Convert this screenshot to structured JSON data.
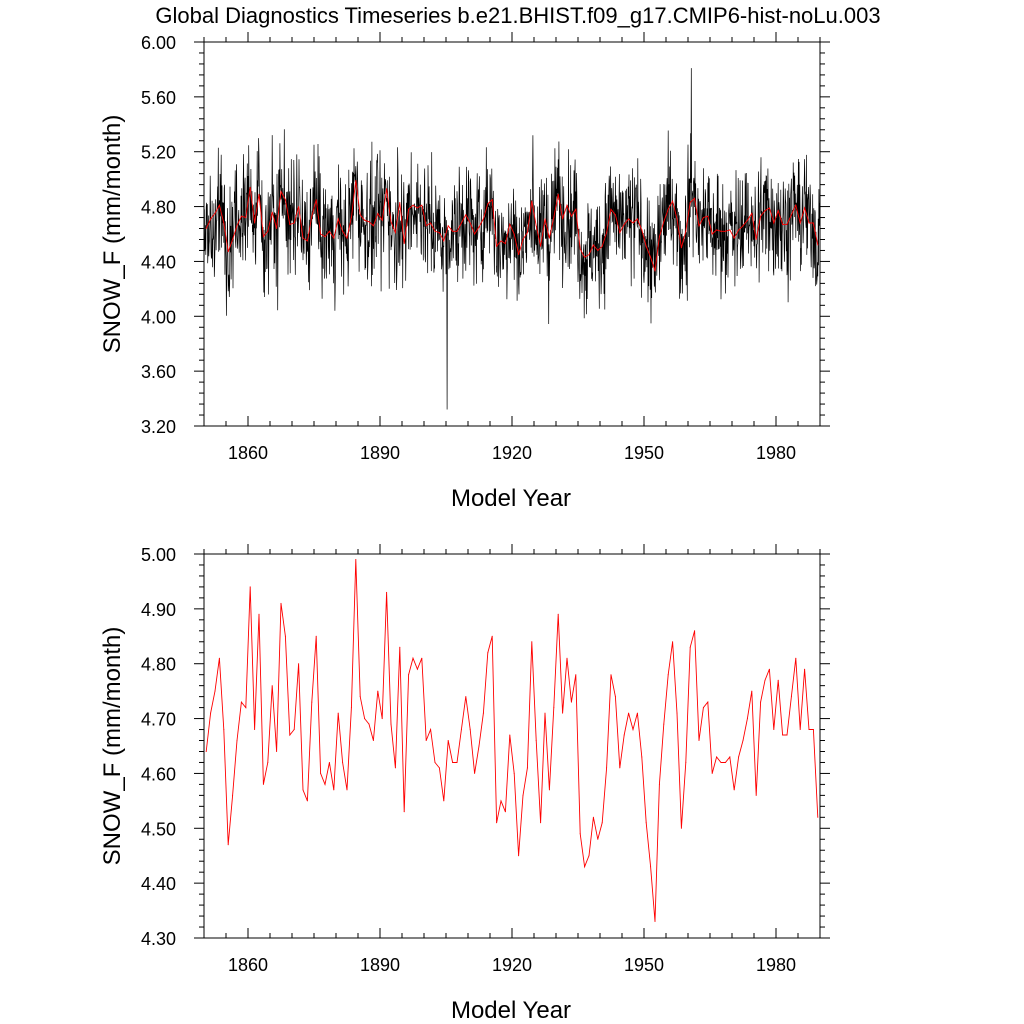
{
  "title": "Global Diagnostics Timeseries b.e21.BHIST.f09_g17.CMIP6-hist-noLu.003",
  "colors": {
    "monthly": "#000000",
    "annual": "#ff0000",
    "frame": "#000000"
  },
  "chart_data": [
    {
      "type": "line",
      "xlabel": "Model Year",
      "ylabel": "SNOW_F (mm/month)",
      "xlim": [
        1850,
        1990
      ],
      "ylim": [
        3.2,
        6.0
      ],
      "xticks": [
        1860,
        1890,
        1920,
        1950,
        1980
      ],
      "yticks": [
        "3.20",
        "3.60",
        "4.00",
        "4.40",
        "4.80",
        "5.20",
        "5.60",
        "6.00"
      ],
      "grid": false,
      "series": [
        {
          "kind": "monthly",
          "color": "#000000",
          "x_start": 1850,
          "x_end": 1990,
          "summary": {
            "mean_approx": 4.7,
            "min": 3.32,
            "min_year": 1905,
            "max": 5.81,
            "max_year": 1960
          }
        },
        {
          "kind": "annual",
          "color": "#ff0000",
          "x": [
            1850,
            1851,
            1852,
            1853,
            1854,
            1855,
            1856,
            1857,
            1858,
            1859,
            1860,
            1861,
            1862,
            1863,
            1864,
            1865,
            1866,
            1867,
            1868,
            1869,
            1870,
            1871,
            1872,
            1873,
            1874,
            1875,
            1876,
            1877,
            1878,
            1879,
            1880,
            1881,
            1882,
            1883,
            1884,
            1885,
            1886,
            1887,
            1888,
            1889,
            1890,
            1891,
            1892,
            1893,
            1894,
            1895,
            1896,
            1897,
            1898,
            1899,
            1900,
            1901,
            1902,
            1903,
            1904,
            1905,
            1906,
            1907,
            1908,
            1909,
            1910,
            1911,
            1912,
            1913,
            1914,
            1915,
            1916,
            1917,
            1918,
            1919,
            1920,
            1921,
            1922,
            1923,
            1924,
            1925,
            1926,
            1927,
            1928,
            1929,
            1930,
            1931,
            1932,
            1933,
            1934,
            1935,
            1936,
            1937,
            1938,
            1939,
            1940,
            1941,
            1942,
            1943,
            1944,
            1945,
            1946,
            1947,
            1948,
            1949,
            1950,
            1951,
            1952,
            1953,
            1954,
            1955,
            1956,
            1957,
            1958,
            1959,
            1960,
            1961,
            1962,
            1963,
            1964,
            1965,
            1966,
            1967,
            1968,
            1969,
            1970,
            1971,
            1972,
            1973,
            1974,
            1975,
            1976,
            1977,
            1978,
            1979,
            1980,
            1981,
            1982,
            1983,
            1984,
            1985,
            1986,
            1987,
            1988,
            1989
          ],
          "values": [
            4.64,
            4.71,
            4.75,
            4.81,
            4.68,
            4.47,
            4.56,
            4.66,
            4.73,
            4.72,
            4.94,
            4.68,
            4.89,
            4.58,
            4.62,
            4.76,
            4.64,
            4.91,
            4.85,
            4.67,
            4.68,
            4.8,
            4.57,
            4.55,
            4.73,
            4.85,
            4.6,
            4.58,
            4.62,
            4.57,
            4.71,
            4.62,
            4.57,
            4.72,
            4.99,
            4.74,
            4.7,
            4.69,
            4.66,
            4.75,
            4.7,
            4.93,
            4.69,
            4.61,
            4.83,
            4.53,
            4.78,
            4.81,
            4.79,
            4.81,
            4.66,
            4.68,
            4.62,
            4.61,
            4.55,
            4.66,
            4.62,
            4.62,
            4.68,
            4.74,
            4.68,
            4.6,
            4.65,
            4.71,
            4.82,
            4.85,
            4.51,
            4.55,
            4.53,
            4.67,
            4.6,
            4.45,
            4.56,
            4.61,
            4.84,
            4.66,
            4.51,
            4.71,
            4.57,
            4.72,
            4.89,
            4.71,
            4.81,
            4.73,
            4.78,
            4.49,
            4.43,
            4.45,
            4.52,
            4.48,
            4.51,
            4.61,
            4.78,
            4.74,
            4.61,
            4.67,
            4.71,
            4.68,
            4.71,
            4.63,
            4.51,
            4.43,
            4.33,
            4.58,
            4.69,
            4.78,
            4.84,
            4.71,
            4.5,
            4.62,
            4.83,
            4.86,
            4.66,
            4.72,
            4.73,
            4.6,
            4.63,
            4.62,
            4.62,
            4.63,
            4.57,
            4.63,
            4.66,
            4.7,
            4.75,
            4.56,
            4.73,
            4.77,
            4.79,
            4.68,
            4.77,
            4.67,
            4.67,
            4.74,
            4.81,
            4.68,
            4.79,
            4.68,
            4.68,
            4.52
          ]
        }
      ]
    },
    {
      "type": "line",
      "xlabel": "Model Year",
      "ylabel": "SNOW_F (mm/month)",
      "xlim": [
        1850,
        1990
      ],
      "ylim": [
        4.3,
        5.0
      ],
      "xticks": [
        1860,
        1890,
        1920,
        1950,
        1980
      ],
      "yticks": [
        "4.30",
        "4.40",
        "4.50",
        "4.60",
        "4.70",
        "4.80",
        "4.90",
        "5.00"
      ],
      "grid": false,
      "series": [
        {
          "kind": "annual",
          "color": "#ff0000",
          "same_as": "annual"
        }
      ]
    }
  ]
}
